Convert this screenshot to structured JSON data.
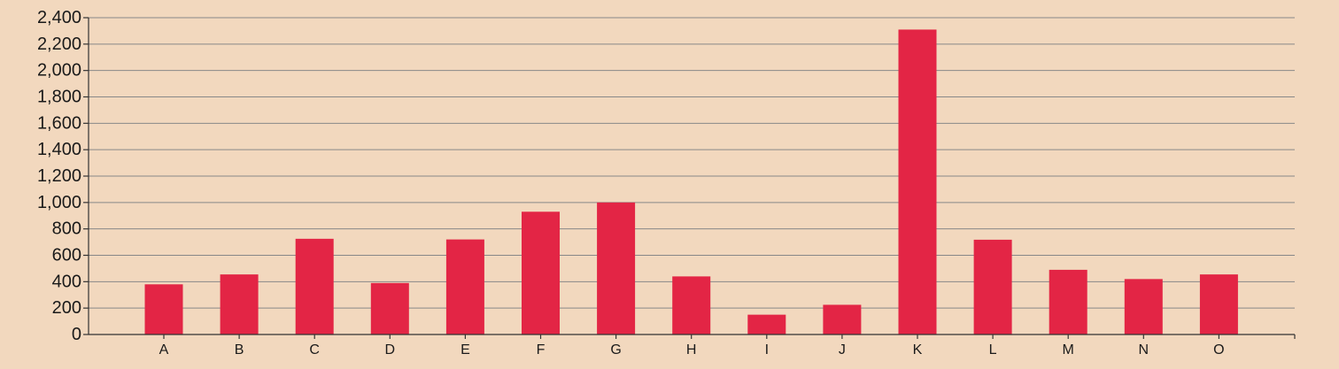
{
  "colors": {
    "background": "#f2d8be",
    "bar": "#e32545",
    "grid": "#888888",
    "axis": "#333333",
    "text": "#1a1a1a"
  },
  "chart_data": {
    "type": "bar",
    "title": "",
    "xlabel": "",
    "ylabel": "",
    "categories": [
      "A",
      "B",
      "C",
      "D",
      "E",
      "F",
      "G",
      "H",
      "I",
      "J",
      "K",
      "L",
      "M",
      "N",
      "O"
    ],
    "values": [
      380,
      455,
      725,
      390,
      720,
      930,
      1000,
      440,
      150,
      225,
      2310,
      718,
      490,
      420,
      455
    ],
    "ylim": [
      0,
      2400
    ],
    "yticks": [
      0,
      200,
      400,
      600,
      800,
      1000,
      1200,
      1400,
      1600,
      1800,
      2000,
      2200,
      2400
    ],
    "ytick_labels": [
      "0",
      "200",
      "400",
      "600",
      "800",
      "1,000",
      "1,200",
      "1,400",
      "1,600",
      "1,800",
      "2,000",
      "2,200",
      "2,400"
    ],
    "grid": true,
    "legend": "none"
  }
}
